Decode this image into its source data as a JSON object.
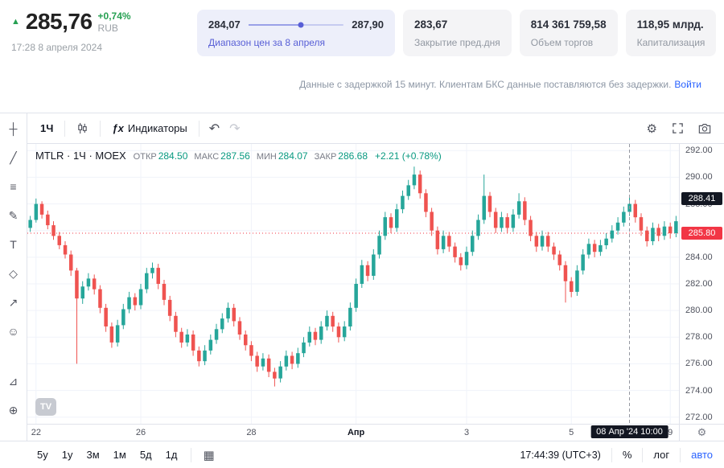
{
  "header": {
    "direction_icon": "▲",
    "price": "285,76",
    "change_pct": "+0,74%",
    "currency": "RUB",
    "timestamp": "17:28 8 апреля 2024",
    "range_card": {
      "min": "284,07",
      "max": "287,90",
      "label": "Диапазон цен за 8 апреля",
      "slider_pct": 55
    },
    "stat_cards": [
      {
        "value": "283,67",
        "label": "Закрытие пред.дня"
      },
      {
        "value": "814 361 759,58",
        "label": "Объем торгов"
      },
      {
        "value": "118,95 млрд.",
        "label": "Капитализация"
      }
    ],
    "disclaimer": "Данные с задержкой 15 минут. Клиентам БКС данные поставляются без задержки.",
    "login_link": "Войти"
  },
  "chart_toolbar": {
    "interval": "1Ч",
    "fx": "ƒx",
    "indicators": "Индикаторы",
    "undo": "↶",
    "redo": "↷",
    "settings_icon": "⚙"
  },
  "drawing_toolbar": {
    "icons": [
      {
        "name": "crosshair-icon",
        "glyph": "┼"
      },
      {
        "name": "trend-line-icon",
        "glyph": "╱"
      },
      {
        "name": "fib-retracement-icon",
        "glyph": "≡"
      },
      {
        "name": "brush-icon",
        "glyph": "✎"
      },
      {
        "name": "text-tool-icon",
        "glyph": "T"
      },
      {
        "name": "xabcd-pattern-icon",
        "glyph": "◇"
      },
      {
        "name": "long-position-icon",
        "glyph": "↗"
      },
      {
        "name": "emoji-icon",
        "glyph": "☺"
      },
      {
        "name": "measure-icon",
        "glyph": "⊿",
        "gap": true
      },
      {
        "name": "zoom-in-icon",
        "glyph": "⊕"
      }
    ]
  },
  "bottom_toolbar": {
    "ranges": [
      "5у",
      "1у",
      "3м",
      "1м",
      "5д",
      "1д"
    ],
    "calendar_icon": "▦",
    "clock": "17:44:39 (UTC+3)",
    "percent": "%",
    "log": "лог",
    "auto": "авто"
  },
  "chart_data": {
    "type": "candlestick",
    "symbol": "MTLR",
    "interval": "1Ч",
    "exchange": "MOEX",
    "legend": {
      "title": "MTLR · 1Ч · MOEX",
      "ohlc": [
        {
          "label": "ОТКР",
          "value": "284.50"
        },
        {
          "label": "МАКС",
          "value": "287.56"
        },
        {
          "label": "МИН",
          "value": "284.07"
        },
        {
          "label": "ЗАКР",
          "value": "286.68"
        }
      ],
      "change": "+2.21 (+0.78%)"
    },
    "ylim": [
      271.5,
      292.5
    ],
    "y_ticks": [
      292,
      290,
      288,
      286,
      284,
      282,
      280,
      278,
      276,
      274,
      272
    ],
    "x_ticks": [
      {
        "label": "22",
        "index": 1
      },
      {
        "label": "26",
        "index": 19
      },
      {
        "label": "28",
        "index": 38
      },
      {
        "label": "Апр",
        "index": 56,
        "bold": true
      },
      {
        "label": "3",
        "index": 75
      },
      {
        "label": "5",
        "index": 93
      },
      {
        "label": "9",
        "index": 110
      }
    ],
    "current_price": {
      "value": "285.80",
      "price": 285.8
    },
    "crosshair": {
      "price_value": "288.41",
      "price": 288.41,
      "index": 103,
      "time_label": "08 Апр '24 10:00"
    },
    "up_color": "#26a69a",
    "down_color": "#ef5350",
    "grid_color": "#f0f3fa",
    "candles": [
      [
        286.2,
        287.1,
        285.9,
        286.8
      ],
      [
        286.8,
        288.4,
        286.6,
        288.0
      ],
      [
        288.0,
        288.2,
        286.9,
        287.2
      ],
      [
        287.2,
        287.5,
        286.1,
        286.4
      ],
      [
        286.4,
        286.7,
        285.3,
        285.6
      ],
      [
        285.6,
        285.9,
        284.6,
        284.9
      ],
      [
        284.9,
        285.2,
        283.9,
        284.2
      ],
      [
        284.2,
        284.5,
        282.6,
        283.0
      ],
      [
        283.0,
        283.2,
        276.0,
        280.9
      ],
      [
        280.9,
        282.2,
        280.5,
        281.8
      ],
      [
        281.8,
        282.8,
        281.5,
        282.4
      ],
      [
        282.4,
        282.7,
        281.2,
        281.6
      ],
      [
        281.6,
        281.9,
        279.8,
        280.2
      ],
      [
        280.2,
        280.5,
        278.4,
        278.8
      ],
      [
        278.8,
        279.1,
        277.2,
        277.6
      ],
      [
        277.6,
        279.3,
        277.3,
        278.9
      ],
      [
        278.9,
        280.5,
        278.6,
        280.1
      ],
      [
        280.1,
        281.4,
        279.8,
        281.0
      ],
      [
        281.0,
        281.3,
        280.0,
        280.4
      ],
      [
        280.4,
        282.0,
        280.1,
        281.6
      ],
      [
        281.6,
        283.2,
        281.3,
        282.8
      ],
      [
        282.8,
        283.6,
        282.4,
        283.2
      ],
      [
        283.2,
        283.5,
        281.6,
        282.0
      ],
      [
        282.0,
        282.3,
        280.4,
        280.8
      ],
      [
        280.8,
        281.1,
        279.2,
        279.6
      ],
      [
        279.6,
        279.9,
        278.0,
        278.4
      ],
      [
        278.4,
        278.7,
        277.2,
        277.6
      ],
      [
        277.6,
        278.6,
        277.3,
        278.2
      ],
      [
        278.2,
        278.5,
        276.6,
        277.0
      ],
      [
        277.0,
        277.3,
        275.8,
        276.2
      ],
      [
        276.2,
        277.4,
        275.9,
        277.0
      ],
      [
        277.0,
        278.2,
        276.7,
        277.8
      ],
      [
        277.8,
        279.0,
        277.5,
        278.6
      ],
      [
        278.6,
        279.8,
        278.3,
        279.4
      ],
      [
        279.4,
        280.6,
        279.1,
        280.2
      ],
      [
        280.2,
        280.5,
        278.8,
        279.2
      ],
      [
        279.2,
        279.5,
        277.8,
        278.2
      ],
      [
        278.2,
        278.5,
        277.0,
        277.4
      ],
      [
        277.4,
        277.7,
        276.2,
        276.6
      ],
      [
        276.6,
        276.9,
        275.4,
        275.8
      ],
      [
        275.8,
        276.8,
        275.5,
        276.4
      ],
      [
        276.4,
        276.7,
        275.0,
        275.4
      ],
      [
        275.4,
        275.7,
        274.3,
        274.9
      ],
      [
        274.9,
        276.2,
        274.6,
        275.8
      ],
      [
        275.8,
        277.0,
        275.5,
        276.6
      ],
      [
        276.6,
        276.9,
        275.6,
        276.0
      ],
      [
        276.0,
        277.2,
        275.7,
        276.8
      ],
      [
        276.8,
        278.0,
        276.5,
        277.6
      ],
      [
        277.6,
        278.8,
        277.3,
        278.4
      ],
      [
        278.4,
        278.7,
        277.4,
        277.8
      ],
      [
        277.8,
        279.2,
        277.5,
        278.8
      ],
      [
        278.8,
        280.0,
        278.5,
        279.6
      ],
      [
        279.6,
        279.9,
        278.4,
        278.8
      ],
      [
        278.8,
        279.1,
        277.6,
        278.0
      ],
      [
        278.0,
        279.2,
        277.7,
        278.8
      ],
      [
        278.8,
        280.6,
        278.5,
        280.2
      ],
      [
        280.2,
        282.4,
        279.9,
        282.0
      ],
      [
        282.0,
        283.8,
        281.7,
        283.4
      ],
      [
        283.4,
        283.7,
        282.2,
        282.6
      ],
      [
        282.6,
        284.6,
        282.3,
        284.2
      ],
      [
        284.2,
        286.0,
        283.9,
        285.6
      ],
      [
        285.6,
        287.4,
        285.3,
        287.0
      ],
      [
        287.0,
        287.3,
        285.8,
        286.2
      ],
      [
        286.2,
        288.0,
        285.9,
        287.6
      ],
      [
        287.6,
        289.0,
        287.3,
        288.6
      ],
      [
        288.6,
        289.8,
        288.3,
        289.4
      ],
      [
        289.4,
        290.8,
        289.1,
        290.2
      ],
      [
        290.2,
        290.5,
        288.4,
        288.8
      ],
      [
        288.8,
        289.1,
        287.0,
        287.4
      ],
      [
        287.4,
        287.7,
        285.6,
        286.0
      ],
      [
        286.0,
        286.3,
        284.2,
        284.6
      ],
      [
        284.6,
        286.0,
        284.3,
        285.6
      ],
      [
        285.6,
        285.9,
        284.4,
        284.8
      ],
      [
        284.8,
        285.1,
        283.6,
        284.0
      ],
      [
        284.0,
        284.3,
        283.0,
        283.4
      ],
      [
        283.4,
        284.8,
        283.1,
        284.4
      ],
      [
        284.4,
        286.0,
        284.1,
        285.6
      ],
      [
        285.6,
        287.2,
        285.3,
        286.8
      ],
      [
        286.8,
        290.2,
        286.5,
        288.6
      ],
      [
        288.6,
        288.9,
        287.0,
        287.4
      ],
      [
        287.4,
        287.7,
        285.8,
        286.2
      ],
      [
        286.2,
        287.4,
        285.9,
        287.0
      ],
      [
        287.0,
        287.3,
        285.8,
        286.2
      ],
      [
        286.2,
        287.6,
        285.9,
        287.2
      ],
      [
        287.2,
        288.8,
        286.9,
        288.2
      ],
      [
        288.2,
        288.5,
        286.4,
        286.8
      ],
      [
        286.8,
        287.1,
        285.2,
        285.6
      ],
      [
        285.6,
        285.9,
        284.4,
        284.8
      ],
      [
        284.8,
        286.0,
        284.5,
        285.6
      ],
      [
        285.6,
        285.9,
        284.4,
        284.8
      ],
      [
        284.8,
        285.1,
        283.8,
        284.2
      ],
      [
        284.2,
        284.5,
        283.0,
        283.4
      ],
      [
        283.4,
        283.7,
        280.6,
        282.2
      ],
      [
        282.2,
        282.5,
        281.0,
        281.4
      ],
      [
        281.4,
        283.4,
        281.1,
        283.0
      ],
      [
        283.0,
        284.6,
        282.7,
        284.2
      ],
      [
        284.2,
        285.4,
        283.9,
        285.0
      ],
      [
        285.0,
        285.3,
        284.0,
        284.4
      ],
      [
        284.4,
        285.3,
        284.1,
        284.9
      ],
      [
        284.9,
        285.8,
        284.6,
        285.4
      ],
      [
        285.4,
        286.4,
        285.1,
        286.0
      ],
      [
        286.0,
        287.0,
        285.7,
        286.6
      ],
      [
        286.6,
        287.8,
        286.3,
        287.4
      ],
      [
        287.4,
        288.5,
        287.1,
        288.0
      ],
      [
        288.0,
        288.3,
        286.6,
        287.0
      ],
      [
        287.0,
        287.3,
        285.6,
        286.0
      ],
      [
        286.0,
        286.3,
        284.8,
        285.2
      ],
      [
        285.2,
        286.6,
        284.9,
        286.2
      ],
      [
        286.2,
        286.5,
        285.2,
        285.6
      ],
      [
        285.6,
        286.7,
        285.3,
        286.3
      ],
      [
        286.3,
        286.6,
        285.4,
        285.8
      ],
      [
        285.8,
        287.1,
        285.5,
        286.7
      ]
    ]
  }
}
